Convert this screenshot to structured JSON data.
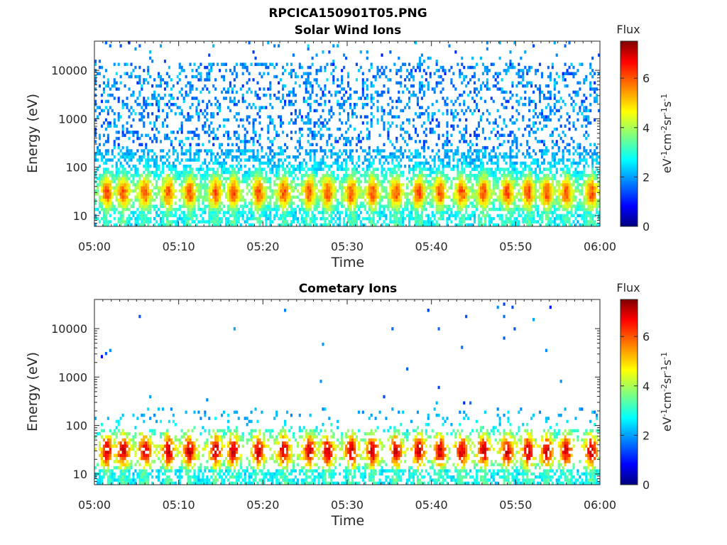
{
  "figure": {
    "title": "RPCICA150901T05.PNG"
  },
  "chart_data": [
    {
      "type": "heatmap",
      "title": "Solar Wind Ions",
      "xlabel": "Time",
      "ylabel": "Energy (eV)",
      "x_ticks": [
        "05:00",
        "05:10",
        "05:20",
        "05:30",
        "05:40",
        "05:50",
        "06:00"
      ],
      "xlim": [
        "05:00",
        "06:00"
      ],
      "y_scale": "log",
      "y_ticks": [
        "10",
        "100",
        "1000",
        "10000"
      ],
      "ylim": [
        6,
        40000
      ],
      "colorbar": {
        "label": "Flux",
        "unit": "eV^-1 cm^-2 sr^-1 s^-1",
        "ticks": [
          "0",
          "2",
          "4",
          "6"
        ],
        "range": [
          0,
          7.5
        ],
        "colormap": "jet"
      },
      "bursts_minutes": [
        1.5,
        3.4,
        6,
        8.8,
        11.3,
        14.4,
        16.5,
        19.5,
        22.5,
        25.5,
        27.7,
        30.5,
        33,
        35.8,
        38.5,
        41,
        43.6,
        46.2,
        49,
        51.5,
        53.7,
        56,
        59
      ],
      "peak_energy_eV": 30,
      "peak_flux": 6,
      "high_energy_flux": 1.5
    },
    {
      "type": "heatmap",
      "title": "Cometary Ions",
      "xlabel": "Time",
      "ylabel": "Energy (eV)",
      "x_ticks": [
        "05:00",
        "05:10",
        "05:20",
        "05:30",
        "05:40",
        "05:50",
        "06:00"
      ],
      "xlim": [
        "05:00",
        "06:00"
      ],
      "y_scale": "log",
      "y_ticks": [
        "10",
        "100",
        "1000",
        "10000"
      ],
      "ylim": [
        6,
        40000
      ],
      "colorbar": {
        "label": "Flux",
        "unit": "eV^-1 cm^-2 sr^-1 s^-1",
        "ticks": [
          "0",
          "2",
          "4",
          "6"
        ],
        "range": [
          0,
          7.5
        ],
        "colormap": "jet"
      },
      "bursts_minutes": [
        1.5,
        3.4,
        6,
        8.8,
        11.3,
        14.4,
        16.5,
        19.5,
        22.5,
        25.5,
        27.7,
        30.5,
        33,
        35.8,
        38.5,
        41,
        43.6,
        46.2,
        49,
        51.5,
        53.7,
        56,
        59
      ],
      "peak_energy_eV": 30,
      "peak_flux": 7,
      "high_energy_flux": 1.2
    }
  ]
}
